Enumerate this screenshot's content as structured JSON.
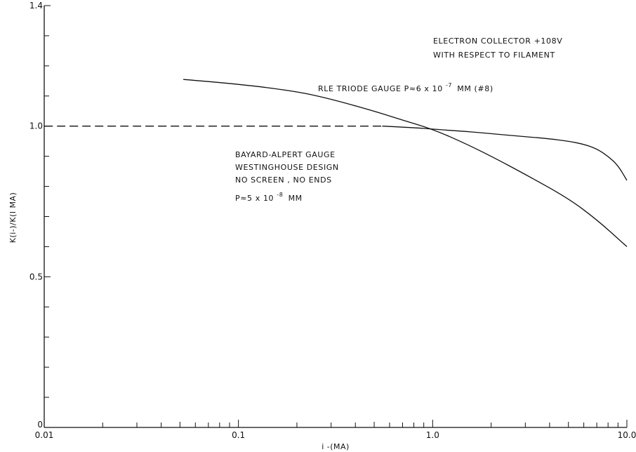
{
  "chart_data": {
    "type": "line",
    "xlabel": "i -(MA)",
    "ylabel": "K(i-)/K(I MA)",
    "xscale": "log",
    "xlim": [
      0.01,
      10.0
    ],
    "ylim": [
      0,
      1.4
    ],
    "grid": false,
    "x_ticks": [
      {
        "value": 0.01,
        "label": "0.01"
      },
      {
        "value": 0.1,
        "label": "0.1"
      },
      {
        "value": 1.0,
        "label": "1.0"
      },
      {
        "value": 10.0,
        "label": "10.0"
      }
    ],
    "y_ticks": [
      {
        "value": 0,
        "label": "0"
      },
      {
        "value": 0.5,
        "label": "0.5"
      },
      {
        "value": 1.0,
        "label": "1.0"
      },
      {
        "value": 1.4,
        "label": "1.4"
      }
    ],
    "series": [
      {
        "name": "RLE TRIODE GAUGE",
        "style": "solid",
        "x": [
          0.052,
          0.1,
          0.2,
          0.3,
          0.5,
          0.7,
          1.0,
          1.5,
          2.0,
          3.0,
          5.0,
          7.0,
          10.0
        ],
        "y": [
          1.155,
          1.14,
          1.115,
          1.09,
          1.05,
          1.02,
          0.99,
          0.94,
          0.9,
          0.84,
          0.76,
          0.69,
          0.6
        ]
      },
      {
        "name": "BAYARD-ALPERT GAUGE",
        "style": "dashed",
        "x": [
          0.01,
          0.03,
          0.1,
          0.3,
          0.55
        ],
        "y": [
          1.0,
          1.0,
          1.0,
          1.0,
          1.0
        ]
      },
      {
        "name": "BAYARD-ALPERT GAUGE",
        "style": "solid",
        "x": [
          0.55,
          0.8,
          1.0,
          1.5,
          2.0,
          3.0,
          4.0,
          5.0,
          6.0,
          7.0,
          8.0,
          9.0,
          10.0
        ],
        "y": [
          1.0,
          0.995,
          0.99,
          0.982,
          0.975,
          0.965,
          0.958,
          0.95,
          0.94,
          0.925,
          0.9,
          0.87,
          0.82
        ]
      }
    ],
    "annotations": {
      "collector_line1": "ELECTRON COLLECTOR +108V",
      "collector_line2": "WITH RESPECT TO FILAMENT",
      "triode_text": "RLE  TRIODE GAUGE P≈6 x 10",
      "triode_exp": "-7",
      "triode_tail": "MM (#8)",
      "ba_line1": "BAYARD-ALPERT GAUGE",
      "ba_line2": "WESTINGHOUSE DESIGN",
      "ba_line3": "NO SCREEN , NO ENDS",
      "ba_p_text": "P≈5 x 10",
      "ba_p_exp": "-8",
      "ba_p_tail": "MM"
    }
  }
}
